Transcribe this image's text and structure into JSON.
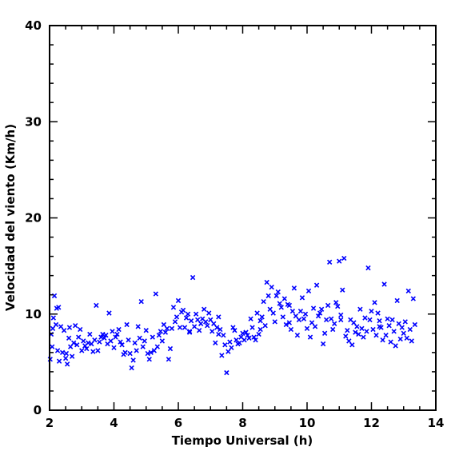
{
  "chart_data": {
    "type": "scatter",
    "xlabel": "Tiempo Universal (h)",
    "ylabel": "Velocidad del viento (Km/h)",
    "xlim": [
      2,
      14
    ],
    "ylim": [
      0,
      40
    ],
    "xticks": [
      2,
      4,
      6,
      8,
      10,
      12,
      14
    ],
    "yticks": [
      0,
      10,
      20,
      30,
      40
    ],
    "x_tick_labels": [
      "2",
      "4",
      "6",
      "8",
      "10",
      "12",
      "14"
    ],
    "y_tick_labels": [
      "0",
      "10",
      "20",
      "30",
      "40"
    ],
    "x_minor_step": 0.5,
    "y_minor_step": 2,
    "marker": "x",
    "color": "#0000ff",
    "grid": false,
    "series": [
      {
        "points": [
          [
            2.02,
            5.3
          ],
          [
            2.05,
            7.9
          ],
          [
            2.08,
            6.6
          ],
          [
            2.1,
            8.5
          ],
          [
            2.12,
            9.6
          ],
          [
            2.15,
            11.9
          ],
          [
            2.2,
            8.9
          ],
          [
            2.22,
            10.6
          ],
          [
            2.25,
            6.2
          ],
          [
            2.28,
            10.7
          ],
          [
            2.3,
            5.1
          ],
          [
            2.35,
            8.7
          ],
          [
            2.4,
            6.0
          ],
          [
            2.45,
            8.3
          ],
          [
            2.5,
            5.4
          ],
          [
            2.52,
            5.9
          ],
          [
            2.55,
            4.8
          ],
          [
            2.6,
            7.5
          ],
          [
            2.62,
            8.6
          ],
          [
            2.65,
            6.6
          ],
          [
            2.7,
            5.6
          ],
          [
            2.75,
            7.0
          ],
          [
            2.8,
            8.8
          ],
          [
            2.85,
            6.8
          ],
          [
            2.9,
            7.6
          ],
          [
            2.95,
            8.4
          ],
          [
            3.0,
            6.2
          ],
          [
            3.05,
            7.2
          ],
          [
            3.1,
            6.7
          ],
          [
            3.15,
            6.4
          ],
          [
            3.2,
            7.0
          ],
          [
            3.25,
            7.9
          ],
          [
            3.3,
            6.9
          ],
          [
            3.35,
            6.1
          ],
          [
            3.4,
            7.3
          ],
          [
            3.45,
            10.9
          ],
          [
            3.5,
            6.2
          ],
          [
            3.55,
            7.1
          ],
          [
            3.6,
            7.6
          ],
          [
            3.65,
            7.9
          ],
          [
            3.7,
            7.5
          ],
          [
            3.75,
            7.8
          ],
          [
            3.8,
            6.9
          ],
          [
            3.85,
            10.1
          ],
          [
            3.9,
            7.2
          ],
          [
            3.95,
            8.2
          ],
          [
            4.0,
            6.5
          ],
          [
            4.05,
            7.6
          ],
          [
            4.1,
            7.9
          ],
          [
            4.15,
            8.4
          ],
          [
            4.2,
            7.1
          ],
          [
            4.25,
            6.8
          ],
          [
            4.3,
            5.8
          ],
          [
            4.35,
            6.0
          ],
          [
            4.4,
            8.9
          ],
          [
            4.45,
            7.3
          ],
          [
            4.5,
            5.9
          ],
          [
            4.55,
            4.4
          ],
          [
            4.6,
            5.2
          ],
          [
            4.65,
            7.0
          ],
          [
            4.7,
            6.2
          ],
          [
            4.75,
            8.7
          ],
          [
            4.8,
            7.5
          ],
          [
            4.85,
            11.3
          ],
          [
            4.9,
            6.6
          ],
          [
            4.95,
            7.2
          ],
          [
            5.0,
            8.3
          ],
          [
            5.05,
            5.9
          ],
          [
            5.1,
            5.3
          ],
          [
            5.15,
            6.0
          ],
          [
            5.2,
            7.6
          ],
          [
            5.25,
            6.2
          ],
          [
            5.3,
            12.1
          ],
          [
            5.35,
            6.6
          ],
          [
            5.4,
            7.8
          ],
          [
            5.45,
            8.2
          ],
          [
            5.5,
            7.2
          ],
          [
            5.55,
            8.9
          ],
          [
            5.6,
            8.1
          ],
          [
            5.65,
            8.5
          ],
          [
            5.7,
            5.3
          ],
          [
            5.75,
            6.4
          ],
          [
            5.8,
            8.5
          ],
          [
            5.85,
            10.7
          ],
          [
            5.9,
            9.2
          ],
          [
            5.95,
            9.7
          ],
          [
            6.0,
            11.4
          ],
          [
            6.05,
            8.6
          ],
          [
            6.1,
            10.2
          ],
          [
            6.15,
            10.4
          ],
          [
            6.2,
            8.6
          ],
          [
            6.25,
            9.6
          ],
          [
            6.3,
            10.0
          ],
          [
            6.35,
            8.1
          ],
          [
            6.4,
            9.3
          ],
          [
            6.45,
            13.8
          ],
          [
            6.5,
            8.7
          ],
          [
            6.55,
            10.0
          ],
          [
            6.6,
            9.4
          ],
          [
            6.65,
            8.3
          ],
          [
            6.7,
            9.0
          ],
          [
            6.75,
            9.5
          ],
          [
            6.8,
            10.5
          ],
          [
            6.85,
            9.2
          ],
          [
            6.9,
            8.8
          ],
          [
            6.95,
            10.1
          ],
          [
            7.0,
            9.4
          ],
          [
            7.05,
            8.2
          ],
          [
            7.1,
            9.0
          ],
          [
            7.15,
            7.0
          ],
          [
            7.2,
            8.6
          ],
          [
            7.25,
            7.9
          ],
          [
            7.3,
            8.4
          ],
          [
            7.35,
            5.7
          ],
          [
            7.4,
            7.8
          ],
          [
            7.45,
            6.8
          ],
          [
            7.5,
            3.9
          ],
          [
            7.55,
            6.1
          ],
          [
            7.6,
            7.1
          ],
          [
            7.65,
            6.5
          ],
          [
            7.7,
            8.6
          ],
          [
            7.75,
            8.3
          ],
          [
            7.8,
            7.3
          ],
          [
            7.85,
            6.9
          ],
          [
            7.9,
            7.0
          ],
          [
            7.95,
            7.6
          ],
          [
            8.0,
            8.0
          ],
          [
            8.05,
            7.3
          ],
          [
            8.1,
            8.1
          ],
          [
            8.15,
            7.8
          ],
          [
            8.2,
            7.5
          ],
          [
            8.25,
            9.5
          ],
          [
            8.3,
            8.6
          ],
          [
            8.35,
            7.6
          ],
          [
            8.4,
            7.3
          ],
          [
            8.45,
            10.1
          ],
          [
            8.5,
            7.9
          ],
          [
            8.55,
            8.4
          ],
          [
            8.6,
            9.7
          ],
          [
            8.65,
            11.3
          ],
          [
            8.7,
            8.8
          ],
          [
            8.75,
            13.3
          ],
          [
            8.8,
            11.9
          ],
          [
            8.85,
            10.5
          ],
          [
            8.9,
            12.8
          ],
          [
            8.95,
            10.1
          ],
          [
            9.0,
            9.2
          ],
          [
            9.05,
            11.9
          ],
          [
            9.1,
            12.3
          ],
          [
            9.15,
            11.1
          ],
          [
            9.2,
            10.7
          ],
          [
            9.25,
            9.7
          ],
          [
            9.3,
            11.6
          ],
          [
            9.35,
            8.9
          ],
          [
            9.4,
            11.0
          ],
          [
            9.45,
            9.1
          ],
          [
            9.5,
            8.4
          ],
          [
            9.55,
            10.3
          ],
          [
            9.6,
            12.7
          ],
          [
            9.65,
            9.8
          ],
          [
            9.7,
            7.8
          ],
          [
            9.75,
            9.4
          ],
          [
            9.8,
            10.3
          ],
          [
            9.85,
            11.7
          ],
          [
            9.9,
            9.5
          ],
          [
            9.95,
            10.0
          ],
          [
            10.0,
            8.5
          ],
          [
            10.05,
            12.4
          ],
          [
            10.1,
            7.6
          ],
          [
            10.15,
            9.1
          ],
          [
            10.2,
            10.6
          ],
          [
            10.25,
            8.7
          ],
          [
            10.3,
            13.0
          ],
          [
            10.35,
            9.8
          ],
          [
            10.4,
            10.1
          ],
          [
            10.45,
            10.5
          ],
          [
            10.5,
            6.9
          ],
          [
            10.55,
            8.0
          ],
          [
            10.6,
            9.4
          ],
          [
            10.65,
            10.9
          ],
          [
            10.7,
            15.4
          ],
          [
            10.75,
            9.5
          ],
          [
            10.8,
            8.4
          ],
          [
            10.85,
            9.0
          ],
          [
            10.9,
            11.2
          ],
          [
            10.95,
            10.8
          ],
          [
            11.0,
            15.5
          ],
          [
            11.05,
            9.9
          ],
          [
            11.1,
            12.5
          ],
          [
            11.15,
            15.8
          ],
          [
            11.2,
            7.7
          ],
          [
            11.25,
            8.3
          ],
          [
            11.3,
            7.2
          ],
          [
            11.35,
            9.4
          ],
          [
            11.4,
            6.8
          ],
          [
            11.45,
            9.1
          ],
          [
            11.5,
            8.1
          ],
          [
            11.55,
            8.7
          ],
          [
            11.6,
            7.9
          ],
          [
            11.65,
            10.5
          ],
          [
            11.7,
            8.5
          ],
          [
            11.75,
            7.6
          ],
          [
            11.8,
            9.6
          ],
          [
            11.85,
            8.2
          ],
          [
            11.9,
            14.8
          ],
          [
            11.95,
            9.4
          ],
          [
            12.0,
            10.3
          ],
          [
            12.05,
            8.4
          ],
          [
            12.1,
            11.2
          ],
          [
            12.15,
            7.8
          ],
          [
            12.2,
            10.1
          ],
          [
            12.25,
            9.3
          ],
          [
            12.3,
            8.6
          ],
          [
            12.35,
            7.3
          ],
          [
            12.4,
            13.1
          ],
          [
            12.45,
            7.8
          ],
          [
            12.5,
            9.5
          ],
          [
            12.55,
            8.8
          ],
          [
            12.6,
            7.1
          ],
          [
            12.65,
            9.4
          ],
          [
            12.7,
            8.2
          ],
          [
            12.75,
            6.7
          ],
          [
            12.8,
            11.4
          ],
          [
            12.85,
            9.0
          ],
          [
            12.9,
            7.4
          ],
          [
            12.95,
            8.6
          ],
          [
            13.0,
            8.0
          ],
          [
            13.05,
            9.2
          ],
          [
            13.1,
            7.5
          ],
          [
            13.15,
            12.4
          ],
          [
            13.2,
            8.4
          ],
          [
            13.25,
            7.2
          ],
          [
            13.3,
            11.6
          ],
          [
            13.35,
            8.9
          ],
          [
            12.25,
            8.7
          ],
          [
            11.05,
            9.4
          ],
          [
            9.45,
            10.9
          ],
          [
            8.55,
            9.3
          ],
          [
            7.25,
            9.7
          ],
          [
            6.35,
            8.2
          ]
        ]
      }
    ]
  }
}
